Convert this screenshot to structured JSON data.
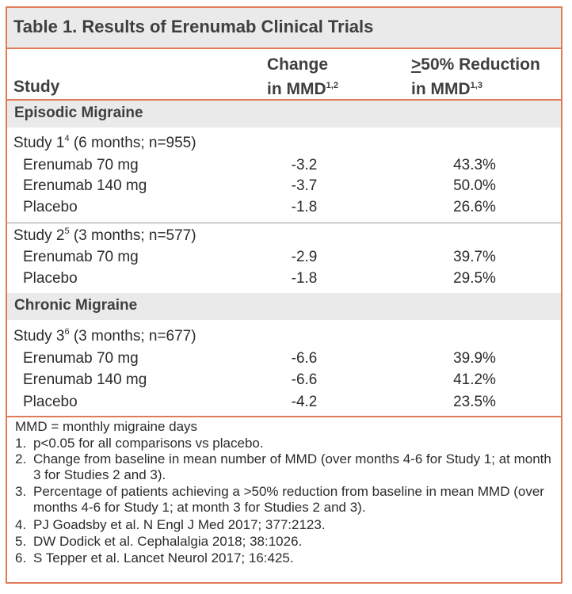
{
  "title": "Table 1. Results of Erenumab Clinical Trials",
  "columns": {
    "study": "Study",
    "change_line1": "Change",
    "change_line2": "in MMD",
    "change_sup": "1,2",
    "reduction_symbol": ">",
    "reduction_line1": "50% Reduction",
    "reduction_line2": "in MMD",
    "reduction_sup": "1,3"
  },
  "sections": [
    {
      "label": "Episodic Migraine",
      "studies": [
        {
          "name": "Study 1",
          "sup": "4",
          "detail": " (6 months; n=955)",
          "rows": [
            {
              "arm": "Erenumab 70 mg",
              "change": "-3.2",
              "reduction": "43.3%"
            },
            {
              "arm": "Erenumab 140 mg",
              "change": "-3.7",
              "reduction": "50.0%"
            },
            {
              "arm": "Placebo",
              "change": "-1.8",
              "reduction": "26.6%"
            }
          ]
        },
        {
          "name": "Study 2",
          "sup": "5",
          "detail": " (3 months; n=577)",
          "rows": [
            {
              "arm": "Erenumab 70 mg",
              "change": "-2.9",
              "reduction": "39.7%"
            },
            {
              "arm": "Placebo",
              "change": "-1.8",
              "reduction": "29.5%"
            }
          ]
        }
      ]
    },
    {
      "label": "Chronic Migraine",
      "studies": [
        {
          "name": "Study 3",
          "sup": "6",
          "detail": " (3 months; n=677)",
          "rows": [
            {
              "arm": "Erenumab 70 mg",
              "change": "-6.6",
              "reduction": "39.9%"
            },
            {
              "arm": "Erenumab 140 mg",
              "change": "-6.6",
              "reduction": "41.2%"
            },
            {
              "arm": "Placebo",
              "change": "-4.2",
              "reduction": "23.5%"
            }
          ]
        }
      ]
    }
  ],
  "footnotes": {
    "abbrev": "MMD = monthly migraine days",
    "items": [
      {
        "n": "1.",
        "text": "p<0.05 for all comparisons vs placebo."
      },
      {
        "n": "2.",
        "text": "Change from baseline in mean number of MMD (over months 4-6 for Study 1; at month 3 for Studies 2 and 3)."
      },
      {
        "n": "3.",
        "text": "Percentage of patients achieving a >50% reduction from baseline in mean MMD (over months 4-6 for Study 1; at month 3 for Studies 2 and 3)."
      },
      {
        "n": "4.",
        "text": "PJ Goadsby et al. N Engl J Med 2017; 377:2123."
      },
      {
        "n": "5.",
        "text": "DW Dodick et al. Cephalalgia 2018; 38:1026."
      },
      {
        "n": "6.",
        "text": "S Tepper et al. Lancet Neurol 2017; 16:425."
      }
    ]
  }
}
